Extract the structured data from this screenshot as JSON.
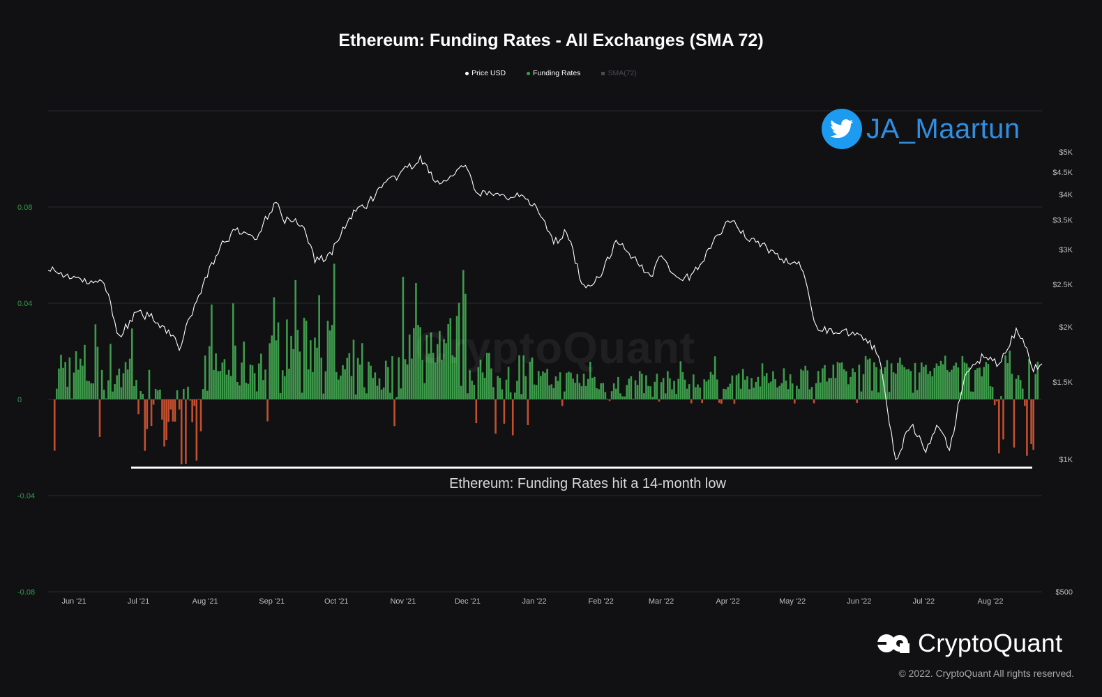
{
  "chart_data": {
    "type": "bar+line",
    "title": "Ethereum: Funding Rates - All Exchanges (SMA 72)",
    "legend": [
      {
        "name": "Price USD",
        "color": "#ffffff"
      },
      {
        "name": "Funding Rates",
        "color": "#3e9b4b"
      },
      {
        "name": "SMA(72)",
        "color": "#4a4a4f"
      }
    ],
    "legend_position": "top-center",
    "x_ticks": [
      "Jun '21",
      "Jul '21",
      "Aug '21",
      "Sep '21",
      "Oct '21",
      "Nov '21",
      "Dec '21",
      "Jan '22",
      "Feb '22",
      "Mar '22",
      "Apr '22",
      "May '22",
      "Jun '22",
      "Jul '22",
      "Aug '22"
    ],
    "x_range": [
      "2021-05-20",
      "2022-08-25"
    ],
    "y_left": {
      "ticks": [
        "0.08",
        "0.04",
        "0",
        "-0.04",
        "-0.08"
      ],
      "range": [
        -0.08,
        0.12
      ],
      "color": "#2e9e4a"
    },
    "y_right": {
      "ticks": [
        "$5K",
        "$4.5K",
        "$4K",
        "$3.5K",
        "$3K",
        "$2.5K",
        "$2K",
        "$1.5K",
        "$1K",
        "$500"
      ],
      "scale": "log",
      "range": [
        500,
        6200
      ]
    },
    "grid": true,
    "positive_color": "#3e9b4b",
    "negative_color": "#c2502f",
    "price_color": "#ffffff",
    "funding_rates_monthly_profile": [
      {
        "month": "Jun '21",
        "typical": 0.012,
        "low": -0.022,
        "high": 0.036
      },
      {
        "month": "Jul '21",
        "typical": -0.004,
        "low": -0.028,
        "high": 0.016
      },
      {
        "month": "Aug '21",
        "typical": 0.014,
        "low": -0.01,
        "high": 0.04
      },
      {
        "month": "Sep '21",
        "typical": 0.022,
        "low": 0.004,
        "high": 0.06
      },
      {
        "month": "Oct '21",
        "typical": 0.01,
        "low": -0.017,
        "high": 0.025
      },
      {
        "month": "Nov '21",
        "typical": 0.025,
        "low": 0.008,
        "high": 0.056
      },
      {
        "month": "Dec '21",
        "typical": 0.011,
        "low": -0.016,
        "high": 0.024
      },
      {
        "month": "Jan '22",
        "typical": 0.008,
        "low": -0.004,
        "high": 0.018
      },
      {
        "month": "Feb '22",
        "typical": 0.005,
        "low": -0.013,
        "high": 0.015
      },
      {
        "month": "Mar '22",
        "typical": 0.007,
        "low": -0.002,
        "high": 0.02
      },
      {
        "month": "Apr '22",
        "typical": 0.008,
        "low": -0.002,
        "high": 0.015
      },
      {
        "month": "May '22",
        "typical": 0.01,
        "low": -0.002,
        "high": 0.024
      },
      {
        "month": "Jun '22",
        "typical": 0.014,
        "low": 0.004,
        "high": 0.02
      },
      {
        "month": "Jul '22",
        "typical": 0.013,
        "low": 0.004,
        "high": 0.02
      },
      {
        "month": "Aug '22",
        "typical": 0.008,
        "low": -0.027,
        "high": 0.022
      }
    ],
    "price_series": [
      {
        "date": "2021-05-20",
        "price": 2750
      },
      {
        "date": "2021-05-24",
        "price": 2650
      },
      {
        "date": "2021-06-01",
        "price": 2600
      },
      {
        "date": "2021-06-08",
        "price": 2500
      },
      {
        "date": "2021-06-15",
        "price": 2550
      },
      {
        "date": "2021-06-22",
        "price": 1900
      },
      {
        "date": "2021-06-30",
        "price": 2150
      },
      {
        "date": "2021-07-08",
        "price": 2100
      },
      {
        "date": "2021-07-15",
        "price": 1950
      },
      {
        "date": "2021-07-20",
        "price": 1800
      },
      {
        "date": "2021-07-31",
        "price": 2500
      },
      {
        "date": "2021-08-08",
        "price": 3050
      },
      {
        "date": "2021-08-15",
        "price": 3300
      },
      {
        "date": "2021-08-25",
        "price": 3200
      },
      {
        "date": "2021-09-03",
        "price": 3900
      },
      {
        "date": "2021-09-07",
        "price": 3500
      },
      {
        "date": "2021-09-15",
        "price": 3450
      },
      {
        "date": "2021-09-21",
        "price": 2850
      },
      {
        "date": "2021-09-28",
        "price": 2900
      },
      {
        "date": "2021-10-07",
        "price": 3550
      },
      {
        "date": "2021-10-15",
        "price": 3800
      },
      {
        "date": "2021-10-21",
        "price": 4100
      },
      {
        "date": "2021-10-29",
        "price": 4400
      },
      {
        "date": "2021-11-09",
        "price": 4800
      },
      {
        "date": "2021-11-18",
        "price": 4200
      },
      {
        "date": "2021-11-30",
        "price": 4650
      },
      {
        "date": "2021-12-04",
        "price": 4100
      },
      {
        "date": "2021-12-10",
        "price": 4000
      },
      {
        "date": "2021-12-20",
        "price": 3950
      },
      {
        "date": "2021-12-27",
        "price": 4050
      },
      {
        "date": "2022-01-05",
        "price": 3500
      },
      {
        "date": "2022-01-10",
        "price": 3100
      },
      {
        "date": "2022-01-16",
        "price": 3300
      },
      {
        "date": "2022-01-24",
        "price": 2450
      },
      {
        "date": "2022-01-31",
        "price": 2600
      },
      {
        "date": "2022-02-09",
        "price": 3150
      },
      {
        "date": "2022-02-14",
        "price": 2950
      },
      {
        "date": "2022-02-24",
        "price": 2600
      },
      {
        "date": "2022-03-01",
        "price": 2950
      },
      {
        "date": "2022-03-08",
        "price": 2550
      },
      {
        "date": "2022-03-15",
        "price": 2600
      },
      {
        "date": "2022-03-25",
        "price": 3100
      },
      {
        "date": "2022-04-02",
        "price": 3500
      },
      {
        "date": "2022-04-10",
        "price": 3200
      },
      {
        "date": "2022-04-18",
        "price": 3050
      },
      {
        "date": "2022-04-26",
        "price": 2850
      },
      {
        "date": "2022-05-05",
        "price": 2750
      },
      {
        "date": "2022-05-12",
        "price": 2000
      },
      {
        "date": "2022-05-20",
        "price": 1950
      },
      {
        "date": "2022-05-31",
        "price": 1950
      },
      {
        "date": "2022-06-10",
        "price": 1750
      },
      {
        "date": "2022-06-18",
        "price": 1000
      },
      {
        "date": "2022-06-25",
        "price": 1200
      },
      {
        "date": "2022-07-02",
        "price": 1050
      },
      {
        "date": "2022-07-08",
        "price": 1200
      },
      {
        "date": "2022-07-13",
        "price": 1050
      },
      {
        "date": "2022-07-20",
        "price": 1550
      },
      {
        "date": "2022-07-28",
        "price": 1700
      },
      {
        "date": "2022-08-05",
        "price": 1650
      },
      {
        "date": "2022-08-13",
        "price": 1950
      },
      {
        "date": "2022-08-18",
        "price": 1800
      },
      {
        "date": "2022-08-21",
        "price": 1600
      },
      {
        "date": "2022-08-25",
        "price": 1650
      }
    ],
    "annotation": "Ethereum: Funding Rates hit a 14-month low"
  },
  "overlay": {
    "twitter_handle": "JA_Maartun",
    "watermark": "CryptoQuant"
  },
  "branding": {
    "name": "CryptoQuant",
    "copyright": "© 2022. CryptoQuant All rights reserved."
  }
}
